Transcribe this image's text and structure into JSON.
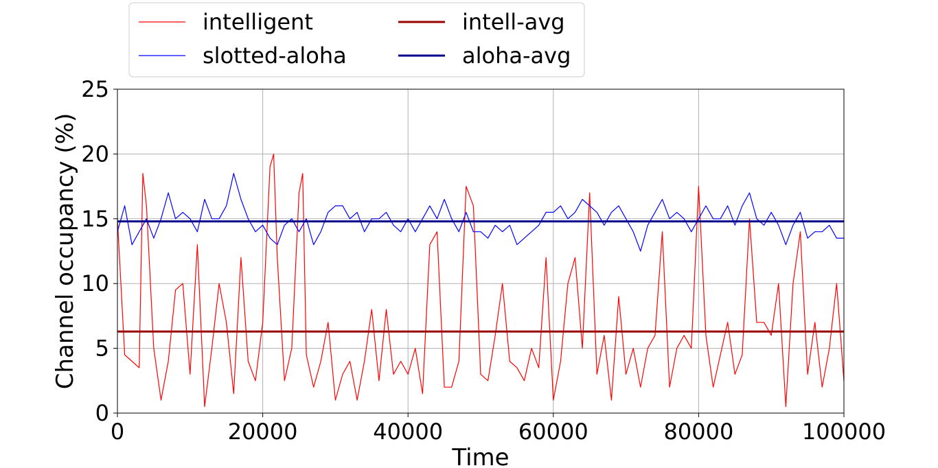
{
  "chart_data": {
    "type": "line",
    "title": "",
    "xlabel": "Time",
    "ylabel": "Channel occupancy (%)",
    "xlim": [
      0,
      100000
    ],
    "ylim": [
      0,
      25
    ],
    "x_ticks": [
      0,
      20000,
      40000,
      60000,
      80000,
      100000
    ],
    "y_ticks": [
      0,
      5,
      10,
      15,
      20,
      25
    ],
    "grid": true,
    "legend": {
      "placement": "top-left",
      "columns": 2
    },
    "series": [
      {
        "name": "intelligent",
        "color": "#ff0000",
        "x": [
          0,
          1000,
          2000,
          3000,
          3500,
          4000,
          5000,
          6000,
          7000,
          8000,
          9000,
          10000,
          11000,
          12000,
          13000,
          14000,
          15000,
          16000,
          17000,
          18000,
          19000,
          20000,
          21000,
          21500,
          22000,
          23000,
          24000,
          25000,
          25500,
          26000,
          27000,
          28000,
          29000,
          30000,
          31000,
          32000,
          33000,
          34000,
          35000,
          36000,
          37000,
          38000,
          39000,
          40000,
          41000,
          42000,
          43000,
          44000,
          45000,
          46000,
          47000,
          48000,
          49000,
          50000,
          51000,
          52000,
          53000,
          54000,
          55000,
          56000,
          57000,
          58000,
          59000,
          60000,
          61000,
          62000,
          63000,
          64000,
          65000,
          66000,
          67000,
          68000,
          69000,
          70000,
          71000,
          72000,
          73000,
          74000,
          75000,
          76000,
          77000,
          78000,
          79000,
          80000,
          81000,
          82000,
          83000,
          84000,
          85000,
          86000,
          87000,
          88000,
          89000,
          90000,
          91000,
          92000,
          93000,
          94000,
          95000,
          96000,
          97000,
          98000,
          99000,
          100000
        ],
        "values": [
          15,
          4.5,
          4,
          3.5,
          18.5,
          16,
          5,
          1,
          4,
          9.5,
          10,
          3,
          13,
          0.5,
          5,
          10,
          7,
          1.5,
          12,
          4,
          2.5,
          7,
          19,
          20,
          12,
          2.5,
          5,
          17,
          18.5,
          4.5,
          2,
          4,
          7,
          1,
          3,
          4,
          1,
          4,
          8,
          2.5,
          8,
          3,
          4,
          3,
          5,
          1.5,
          13,
          14,
          2,
          2,
          4,
          17.5,
          16,
          3,
          2.5,
          6,
          10,
          4,
          3.5,
          2.5,
          5,
          3.5,
          12,
          1,
          4,
          10,
          12,
          5,
          17,
          3,
          6,
          1,
          9,
          3,
          5,
          2,
          5,
          6,
          14,
          2,
          5,
          6,
          5,
          17.5,
          6,
          2,
          4.5,
          7,
          3,
          4.5,
          15,
          7,
          7,
          6,
          10,
          0.5,
          10,
          14,
          3,
          7,
          2,
          5,
          10,
          2.5
        ]
      },
      {
        "name": "slotted-aloha",
        "color": "#0000ff",
        "x": [
          0,
          1000,
          2000,
          3000,
          4000,
          5000,
          6000,
          7000,
          8000,
          9000,
          10000,
          11000,
          12000,
          13000,
          14000,
          15000,
          16000,
          17000,
          18000,
          19000,
          20000,
          21000,
          22000,
          23000,
          24000,
          25000,
          26000,
          27000,
          28000,
          29000,
          30000,
          31000,
          32000,
          33000,
          34000,
          35000,
          36000,
          37000,
          38000,
          39000,
          40000,
          41000,
          42000,
          43000,
          44000,
          45000,
          46000,
          47000,
          48000,
          49000,
          50000,
          51000,
          52000,
          53000,
          54000,
          55000,
          56000,
          57000,
          58000,
          59000,
          60000,
          61000,
          62000,
          63000,
          64000,
          65000,
          66000,
          67000,
          68000,
          69000,
          70000,
          71000,
          72000,
          73000,
          74000,
          75000,
          76000,
          77000,
          78000,
          79000,
          80000,
          81000,
          82000,
          83000,
          84000,
          85000,
          86000,
          87000,
          88000,
          89000,
          90000,
          91000,
          92000,
          93000,
          94000,
          95000,
          96000,
          97000,
          98000,
          99000,
          100000
        ],
        "values": [
          14,
          16,
          13,
          14,
          15,
          13.5,
          15,
          17,
          15,
          15.5,
          15,
          14,
          16.5,
          15,
          15,
          16,
          18.5,
          16.5,
          15,
          14,
          14.5,
          13.5,
          13,
          14.5,
          15,
          14,
          15,
          13,
          14,
          15.5,
          16,
          16,
          15,
          15.5,
          14,
          15,
          15,
          15.5,
          14.5,
          14,
          15,
          14,
          15,
          16,
          15,
          16.5,
          15,
          14,
          15.5,
          14,
          14,
          13.5,
          14.5,
          14,
          14.5,
          13,
          13.5,
          14,
          14.5,
          15.5,
          15.5,
          16,
          15,
          15.5,
          16.5,
          16,
          15.5,
          14.5,
          15.5,
          16,
          15,
          14,
          12.5,
          14.5,
          15.5,
          16.5,
          15,
          15.5,
          15,
          14,
          15,
          16,
          15,
          15,
          16,
          14.5,
          16,
          17,
          15,
          14.5,
          15.5,
          14.5,
          13,
          14.5,
          15.5,
          13.5,
          14,
          14,
          14.5,
          13.5,
          13.5
        ]
      },
      {
        "name": "intell-avg",
        "color": "#990000",
        "x": [
          0,
          100000
        ],
        "values": [
          6.3,
          6.3
        ]
      },
      {
        "name": "aloha-avg",
        "color": "#00008b",
        "x": [
          0,
          100000
        ],
        "values": [
          14.8,
          14.8
        ]
      }
    ]
  }
}
